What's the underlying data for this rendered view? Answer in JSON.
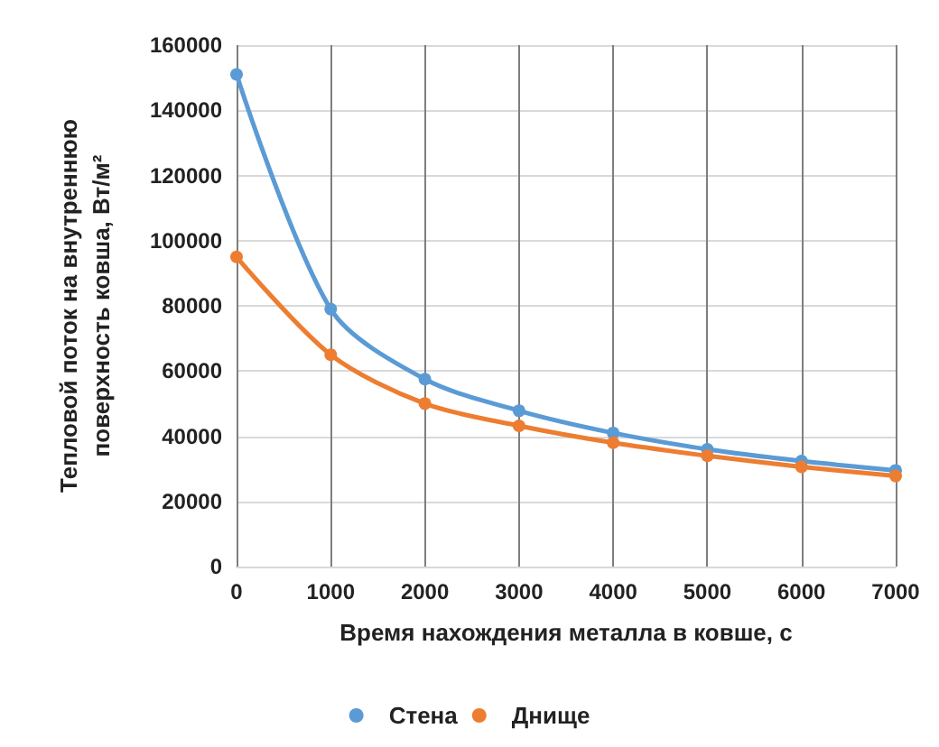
{
  "chart_data": {
    "type": "line",
    "xlabel": "Время нахождения металла в ковше, с",
    "ylabel": "Тепловой поток на внутреннюю поверхность ковша, Вт/м²",
    "x": [
      0,
      1000,
      2000,
      3000,
      4000,
      5000,
      6000,
      7000
    ],
    "series": [
      {
        "name": "Стена",
        "color": "#5b9bd5",
        "values": [
          151000,
          79000,
          57500,
          47800,
          41000,
          36000,
          32400,
          29500
        ]
      },
      {
        "name": "Днище",
        "color": "#ed7d31",
        "values": [
          95000,
          65000,
          50000,
          43200,
          38000,
          34000,
          30600,
          27800
        ]
      }
    ],
    "xlim": [
      0,
      7000
    ],
    "xticks": [
      0,
      1000,
      2000,
      3000,
      4000,
      5000,
      6000,
      7000
    ],
    "ylim": [
      0,
      160000
    ],
    "yticks": [
      0,
      20000,
      40000,
      60000,
      80000,
      100000,
      120000,
      140000,
      160000
    ],
    "grid": true,
    "legend": "bottom",
    "marker": "circle",
    "line_style": "solid"
  }
}
